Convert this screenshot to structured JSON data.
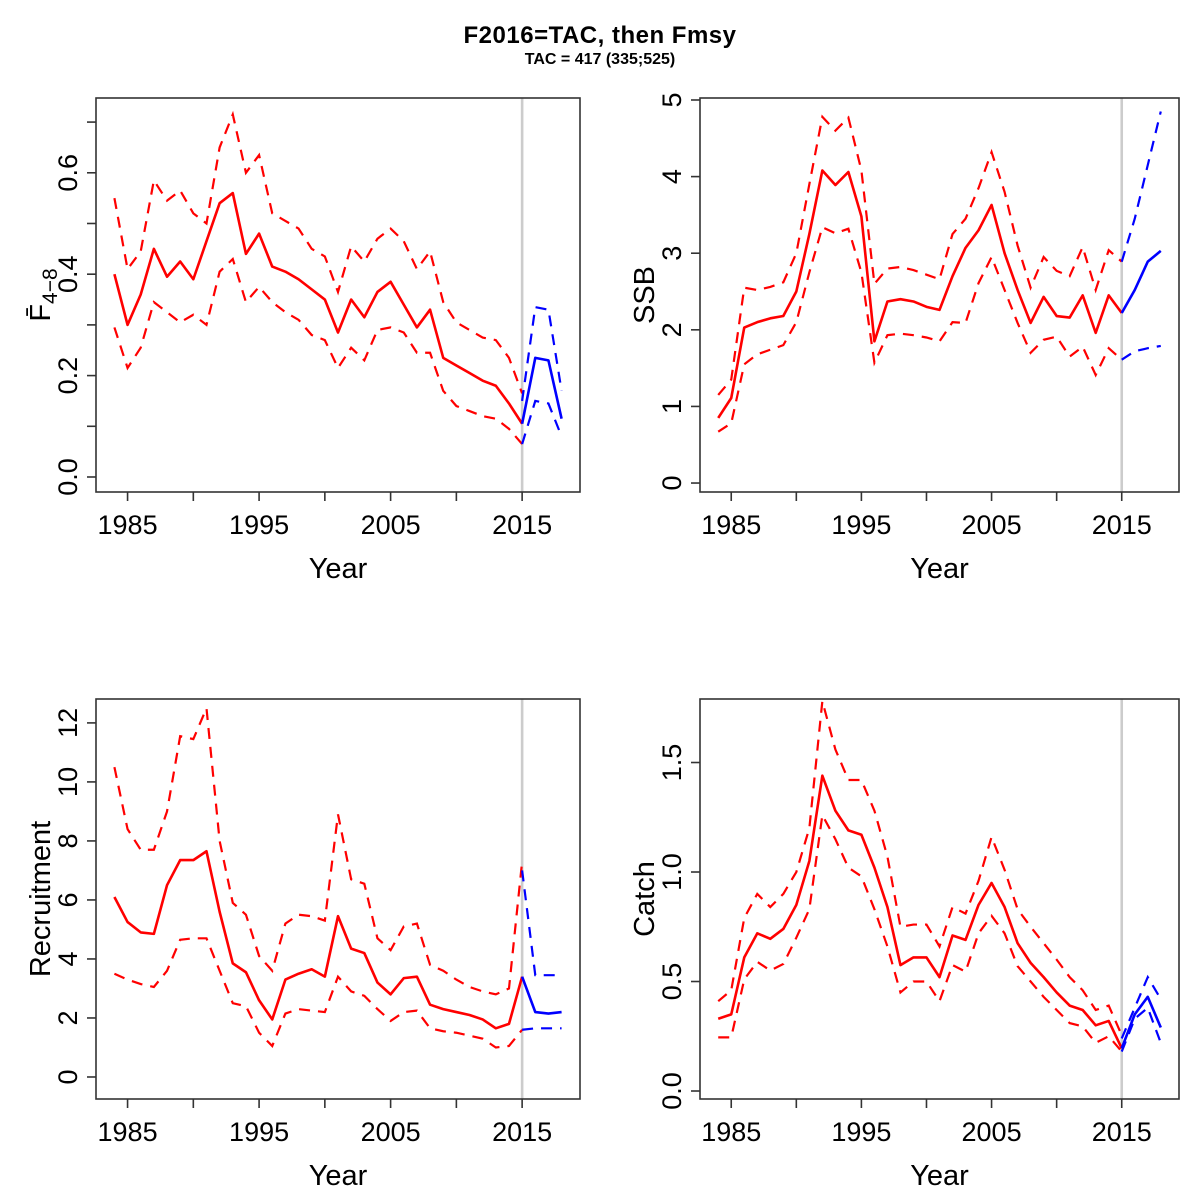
{
  "title": "F2016=TAC, then Fmsy",
  "subtitle": "TAC = 417 (335;525)",
  "colors": {
    "historical": "#ff0000",
    "forecast": "#0000ff",
    "forecast_start_marker": "#cccccc",
    "axis": "#333333"
  },
  "forecast_start_year": 2015,
  "x_axis": {
    "label": "Year",
    "domain": [
      1982.6,
      2019.4
    ],
    "ticks": [
      1985,
      1990,
      1995,
      2000,
      2005,
      2010,
      2015
    ],
    "labeled_ticks": [
      1985,
      1995,
      2005,
      2015
    ]
  },
  "chart_data": [
    {
      "id": "fbar",
      "type": "line",
      "ylabel_main": "F̄",
      "ylabel_sub": "4−8",
      "xlabel": "Year",
      "y_domain": [
        -0.0296,
        0.7475
      ],
      "y_ticks": [
        {
          "v": 0.0,
          "l": "0.0"
        },
        {
          "v": 0.2,
          "l": "0.2"
        },
        {
          "v": 0.4,
          "l": "0.4"
        },
        {
          "v": 0.6,
          "l": "0.6"
        }
      ],
      "y_minor_ticks": [
        0.1,
        0.3,
        0.5,
        0.7
      ],
      "years": [
        1984,
        1985,
        1986,
        1987,
        1988,
        1989,
        1990,
        1991,
        1992,
        1993,
        1994,
        1995,
        1996,
        1997,
        1998,
        1999,
        2000,
        2001,
        2002,
        2003,
        2004,
        2005,
        2006,
        2007,
        2008,
        2009,
        2010,
        2011,
        2012,
        2013,
        2014,
        2015
      ],
      "median": [
        0.4,
        0.3,
        0.36,
        0.45,
        0.395,
        0.425,
        0.39,
        0.465,
        0.54,
        0.56,
        0.44,
        0.48,
        0.415,
        0.405,
        0.39,
        0.37,
        0.35,
        0.285,
        0.35,
        0.315,
        0.365,
        0.385,
        0.34,
        0.295,
        0.33,
        0.235,
        0.22,
        0.205,
        0.19,
        0.18,
        0.145,
        0.105
      ],
      "upper": [
        0.55,
        0.41,
        0.445,
        0.585,
        0.545,
        0.565,
        0.52,
        0.5,
        0.65,
        0.715,
        0.6,
        0.635,
        0.52,
        0.505,
        0.49,
        0.45,
        0.435,
        0.365,
        0.455,
        0.425,
        0.47,
        0.49,
        0.465,
        0.41,
        0.445,
        0.345,
        0.305,
        0.29,
        0.275,
        0.27,
        0.235,
        0.165
      ],
      "lower": [
        0.295,
        0.215,
        0.255,
        0.345,
        0.325,
        0.305,
        0.32,
        0.3,
        0.405,
        0.43,
        0.345,
        0.375,
        0.345,
        0.325,
        0.31,
        0.28,
        0.27,
        0.215,
        0.255,
        0.23,
        0.29,
        0.295,
        0.285,
        0.245,
        0.245,
        0.17,
        0.14,
        0.13,
        0.12,
        0.115,
        0.095,
        0.065
      ],
      "forecast_years": [
        2015,
        2016,
        2017,
        2018
      ],
      "forecast_median": [
        0.105,
        0.235,
        0.23,
        0.115
      ],
      "forecast_upper": [
        0.15,
        0.335,
        0.33,
        0.17
      ],
      "forecast_lower": [
        0.065,
        0.15,
        0.145,
        0.08
      ]
    },
    {
      "id": "ssb",
      "type": "line",
      "ylabel_main": "SSB",
      "ylabel_sub": "",
      "xlabel": "Year",
      "y_domain": [
        -0.117,
        5.026
      ],
      "y_ticks": [
        {
          "v": 0,
          "l": "0"
        },
        {
          "v": 1,
          "l": "1"
        },
        {
          "v": 2,
          "l": "2"
        },
        {
          "v": 3,
          "l": "3"
        },
        {
          "v": 4,
          "l": "4"
        },
        {
          "v": 5,
          "l": "5"
        }
      ],
      "y_minor_ticks": [],
      "years": [
        1984,
        1985,
        1986,
        1987,
        1988,
        1989,
        1990,
        1991,
        1992,
        1993,
        1994,
        1995,
        1996,
        1997,
        1998,
        1999,
        2000,
        2001,
        2002,
        2003,
        2004,
        2005,
        2006,
        2007,
        2008,
        2009,
        2010,
        2011,
        2012,
        2013,
        2014,
        2015
      ],
      "median": [
        0.85,
        1.11,
        2.03,
        2.1,
        2.15,
        2.18,
        2.5,
        3.25,
        4.08,
        3.89,
        4.06,
        3.48,
        1.85,
        2.37,
        2.4,
        2.37,
        2.3,
        2.26,
        2.7,
        3.07,
        3.3,
        3.63,
        3.0,
        2.52,
        2.09,
        2.43,
        2.18,
        2.16,
        2.45,
        1.96,
        2.45,
        2.22
      ],
      "upper": [
        1.15,
        1.35,
        2.55,
        2.52,
        2.56,
        2.62,
        3.0,
        3.9,
        4.78,
        4.6,
        4.77,
        4.08,
        2.6,
        2.8,
        2.82,
        2.78,
        2.72,
        2.66,
        3.25,
        3.45,
        3.85,
        4.32,
        3.8,
        3.1,
        2.55,
        2.95,
        2.77,
        2.7,
        3.08,
        2.52,
        3.04,
        2.89
      ],
      "lower": [
        0.67,
        0.78,
        1.55,
        1.68,
        1.74,
        1.8,
        2.1,
        2.75,
        3.34,
        3.26,
        3.32,
        2.75,
        1.57,
        1.93,
        1.95,
        1.93,
        1.9,
        1.85,
        2.1,
        2.09,
        2.61,
        2.95,
        2.52,
        2.09,
        1.7,
        1.87,
        1.91,
        1.65,
        1.78,
        1.41,
        1.76,
        1.61
      ],
      "forecast_years": [
        2015,
        2016,
        2017,
        2018
      ],
      "forecast_median": [
        2.22,
        2.52,
        2.89,
        3.03
      ],
      "forecast_upper": [
        2.89,
        3.45,
        4.15,
        4.85
      ],
      "forecast_lower": [
        1.61,
        1.72,
        1.76,
        1.79
      ]
    },
    {
      "id": "recruitment",
      "type": "line",
      "ylabel_main": "Recruitment",
      "ylabel_sub": "",
      "xlabel": "Year",
      "y_domain": [
        -0.746,
        12.81
      ],
      "y_ticks": [
        {
          "v": 0,
          "l": "0"
        },
        {
          "v": 2,
          "l": "2"
        },
        {
          "v": 4,
          "l": "4"
        },
        {
          "v": 6,
          "l": "6"
        },
        {
          "v": 8,
          "l": "8"
        },
        {
          "v": 10,
          "l": "10"
        },
        {
          "v": 12,
          "l": "12"
        }
      ],
      "y_minor_ticks": [],
      "years": [
        1984,
        1985,
        1986,
        1987,
        1988,
        1989,
        1990,
        1991,
        1992,
        1993,
        1994,
        1995,
        1996,
        1997,
        1998,
        1999,
        2000,
        2001,
        2002,
        2003,
        2004,
        2005,
        2006,
        2007,
        2008,
        2009,
        2010,
        2011,
        2012,
        2013,
        2014,
        2015
      ],
      "median": [
        6.1,
        5.25,
        4.9,
        4.85,
        6.5,
        7.35,
        7.35,
        7.65,
        5.6,
        3.85,
        3.55,
        2.6,
        1.95,
        3.3,
        3.5,
        3.65,
        3.4,
        5.45,
        4.35,
        4.2,
        3.2,
        2.8,
        3.35,
        3.4,
        2.45,
        2.3,
        2.2,
        2.1,
        1.95,
        1.65,
        1.8,
        3.4
      ],
      "upper": [
        10.5,
        8.4,
        7.7,
        7.7,
        9.0,
        11.55,
        11.45,
        12.5,
        8.0,
        5.9,
        5.5,
        4.1,
        3.6,
        5.2,
        5.5,
        5.45,
        5.3,
        8.9,
        6.7,
        6.55,
        4.7,
        4.3,
        5.1,
        5.2,
        3.8,
        3.6,
        3.3,
        3.05,
        2.9,
        2.8,
        3.0,
        7.3
      ],
      "lower": [
        3.5,
        3.3,
        3.15,
        3.05,
        3.6,
        4.65,
        4.7,
        4.7,
        3.6,
        2.5,
        2.4,
        1.5,
        1.05,
        2.15,
        2.3,
        2.25,
        2.2,
        3.4,
        2.9,
        2.75,
        2.3,
        1.9,
        2.2,
        2.25,
        1.65,
        1.55,
        1.5,
        1.4,
        1.3,
        1.0,
        1.05,
        1.6
      ],
      "forecast_years": [
        2015,
        2016,
        2017,
        2018
      ],
      "forecast_median": [
        3.4,
        2.2,
        2.15,
        2.2
      ],
      "forecast_upper": [
        7.0,
        3.45,
        3.45,
        3.45
      ],
      "forecast_lower": [
        1.6,
        1.65,
        1.65,
        1.65
      ]
    },
    {
      "id": "catch",
      "type": "line",
      "ylabel_main": "Catch",
      "ylabel_sub": "",
      "xlabel": "Year",
      "y_domain": [
        -0.0365,
        1.79
      ],
      "y_ticks": [
        {
          "v": 0.0,
          "l": "0.0"
        },
        {
          "v": 0.5,
          "l": "0.5"
        },
        {
          "v": 1.0,
          "l": "1.0"
        },
        {
          "v": 1.5,
          "l": "1.5"
        }
      ],
      "y_minor_ticks": [],
      "years": [
        1984,
        1985,
        1986,
        1987,
        1988,
        1989,
        1990,
        1991,
        1992,
        1993,
        1994,
        1995,
        1996,
        1997,
        1998,
        1999,
        2000,
        2001,
        2002,
        2003,
        2004,
        2005,
        2006,
        2007,
        2008,
        2009,
        2010,
        2011,
        2012,
        2013,
        2014,
        2015
      ],
      "median": [
        0.33,
        0.35,
        0.61,
        0.72,
        0.695,
        0.74,
        0.85,
        1.05,
        1.44,
        1.28,
        1.19,
        1.17,
        1.02,
        0.84,
        0.575,
        0.61,
        0.61,
        0.52,
        0.71,
        0.69,
        0.85,
        0.95,
        0.84,
        0.675,
        0.585,
        0.52,
        0.45,
        0.39,
        0.37,
        0.3,
        0.32,
        0.195
      ],
      "upper": [
        0.41,
        0.46,
        0.79,
        0.9,
        0.84,
        0.9,
        1.0,
        1.2,
        1.78,
        1.56,
        1.42,
        1.42,
        1.28,
        1.07,
        0.75,
        0.76,
        0.76,
        0.66,
        0.84,
        0.81,
        0.96,
        1.16,
        1.01,
        0.83,
        0.75,
        0.675,
        0.6,
        0.52,
        0.46,
        0.37,
        0.39,
        0.255
      ],
      "lower": [
        0.245,
        0.245,
        0.51,
        0.59,
        0.55,
        0.58,
        0.7,
        0.83,
        1.26,
        1.15,
        1.02,
        0.98,
        0.83,
        0.66,
        0.45,
        0.5,
        0.5,
        0.41,
        0.575,
        0.545,
        0.72,
        0.8,
        0.72,
        0.57,
        0.5,
        0.43,
        0.37,
        0.31,
        0.295,
        0.22,
        0.25,
        0.18
      ],
      "forecast_years": [
        2015,
        2016,
        2017,
        2018
      ],
      "forecast_median": [
        0.195,
        0.35,
        0.43,
        0.29
      ],
      "forecast_upper": [
        0.24,
        0.38,
        0.52,
        0.42
      ],
      "forecast_lower": [
        0.18,
        0.33,
        0.38,
        0.22
      ]
    }
  ]
}
